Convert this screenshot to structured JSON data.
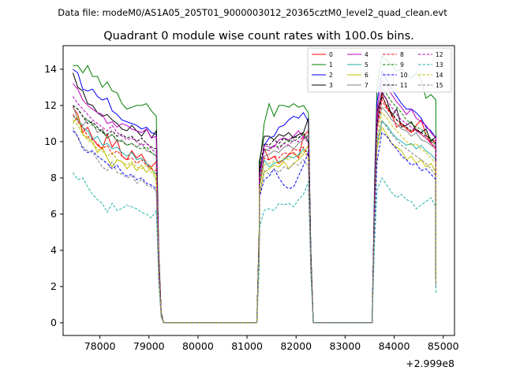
{
  "chart_data": {
    "type": "line",
    "suptitle": "Data file: modeM0/AS1A05_205T01_9000003012_20365cztM0_level2_quad_clean.evt",
    "title": "Quadrant 0 module wise count rates with 100.0s bins.",
    "x_offset_label": "+2.999e8",
    "xlim": [
      77250,
      85230
    ],
    "ylim": [
      -0.7,
      15.3
    ],
    "x_ticks": [
      78000,
      79000,
      80000,
      81000,
      82000,
      83000,
      84000,
      85000
    ],
    "x_tick_labels": [
      "78000",
      "79000",
      "80000",
      "81000",
      "82000",
      "83000",
      "84000",
      "85000"
    ],
    "y_ticks": [
      0,
      2,
      4,
      6,
      8,
      10,
      12,
      14
    ],
    "y_tick_labels": [
      "0",
      "2",
      "4",
      "6",
      "8",
      "10",
      "12",
      "14"
    ],
    "x_segments": [
      {
        "start": 77450,
        "end": 79150
      },
      {
        "start": 79150,
        "end": 81250
      },
      {
        "start": 81250,
        "end": 82250
      },
      {
        "start": 82250,
        "end": 83650
      },
      {
        "start": 83650,
        "end": 84850
      }
    ],
    "transition_points": [
      {
        "x": 79200,
        "y_frac": 0.35
      },
      {
        "x": 79250,
        "y_frac": 0.05
      },
      {
        "x": 81250,
        "y_frac": 0.6
      },
      {
        "x": 82300,
        "y_frac": 0.35
      },
      {
        "x": 83600,
        "y_frac": 0.6
      },
      {
        "x": 84850,
        "y_frac": 0.25
      }
    ],
    "series": [
      {
        "name": "0",
        "color": "#ff0000",
        "dash": "solid",
        "orbit1": [
          11.9,
          11.5,
          10.5,
          10.8,
          10.2,
          9.8,
          9.6,
          10.4,
          9.7,
          10.1,
          9.2,
          9.0,
          9.5,
          9.1,
          9.3,
          8.8,
          8.6,
          8.9
        ],
        "orbit2": [
          8.4,
          9.6,
          9.0,
          9.2,
          8.8,
          9.0,
          9.3,
          9.4,
          9.1,
          10.3,
          10.6
        ],
        "orbit3": [
          11.3,
          12.6,
          11.9,
          11.5,
          10.8,
          11.0,
          10.7,
          10.5,
          10.9,
          11.2,
          10.4,
          9.9,
          10.1
        ]
      },
      {
        "name": "1",
        "color": "#008000",
        "dash": "solid",
        "orbit1": [
          14.2,
          14.2,
          13.8,
          14.2,
          13.6,
          13.6,
          13.0,
          13.3,
          12.8,
          12.7,
          12.1,
          11.8,
          11.9,
          12.0,
          12.0,
          12.1,
          11.7,
          11.4
        ],
        "orbit2": [
          8.5,
          11.0,
          12.1,
          11.4,
          12.0,
          12.0,
          11.9,
          12.1,
          11.9,
          12.0,
          11.6
        ],
        "orbit3": [
          13.1,
          14.7,
          14.5,
          14.2,
          13.9,
          14.0,
          13.8,
          13.5,
          13.8,
          13.4,
          12.4,
          12.6,
          12.3
        ]
      },
      {
        "name": "2",
        "color": "#0000ff",
        "dash": "solid",
        "orbit1": [
          14.0,
          13.8,
          12.9,
          12.8,
          12.9,
          12.5,
          12.3,
          12.4,
          11.7,
          11.5,
          11.2,
          11.1,
          11.0,
          10.9,
          10.7,
          10.8,
          10.5,
          10.4
        ],
        "orbit2": [
          7.8,
          9.8,
          10.2,
          10.3,
          10.8,
          10.9,
          11.2,
          11.4,
          11.3,
          11.6,
          11.1
        ],
        "orbit3": [
          12.2,
          13.9,
          13.4,
          12.9,
          12.5,
          12.1,
          11.8,
          11.8,
          11.6,
          11.3,
          10.8,
          10.6,
          10.2
        ]
      },
      {
        "name": "3",
        "color": "#000000",
        "dash": "solid",
        "orbit1": [
          13.8,
          13.0,
          12.8,
          12.1,
          12.0,
          11.6,
          11.4,
          11.5,
          11.2,
          11.0,
          10.7,
          10.6,
          10.9,
          10.6,
          10.3,
          10.7,
          10.2,
          10.6
        ],
        "orbit2": [
          8.9,
          10.3,
          10.3,
          10.1,
          10.4,
          10.3,
          10.5,
          10.2,
          10.4,
          10.5,
          11.3
        ],
        "orbit3": [
          11.6,
          12.7,
          12.3,
          11.4,
          11.8,
          10.8,
          10.9,
          11.1,
          10.6,
          10.5,
          10.7,
          10.0,
          10.3
        ]
      },
      {
        "name": "4",
        "color": "#bf00bf",
        "dash": "solid",
        "orbit1": [
          13.2,
          12.9,
          12.3,
          12.0,
          11.8,
          11.6,
          11.5,
          11.0,
          11.1,
          10.8,
          11.0,
          10.9,
          10.7,
          10.6,
          10.5,
          10.7,
          10.2,
          10.3
        ],
        "orbit2": [
          8.2,
          9.8,
          9.7,
          9.7,
          10.1,
          10.2,
          10.1,
          10.3,
          10.6,
          10.2,
          10.3
        ],
        "orbit3": [
          11.8,
          13.4,
          13.1,
          12.6,
          12.2,
          11.9,
          11.5,
          11.8,
          11.3,
          11.1,
          10.9,
          10.5,
          10.2
        ]
      },
      {
        "name": "5",
        "color": "#20b2aa",
        "dash": "solid",
        "orbit1": [
          11.4,
          11.2,
          10.8,
          10.6,
          10.1,
          10.3,
          9.8,
          9.9,
          9.6,
          9.7,
          9.4,
          9.2,
          9.4,
          9.0,
          9.1,
          8.8,
          8.5,
          8.2
        ],
        "orbit2": [
          7.5,
          9.0,
          8.6,
          8.8,
          8.9,
          9.0,
          9.2,
          9.1,
          9.3,
          9.6,
          9.4
        ],
        "orbit3": [
          10.0,
          11.1,
          10.9,
          10.5,
          10.2,
          10.0,
          9.8,
          9.9,
          9.6,
          9.8,
          9.5,
          9.3,
          9.0
        ]
      },
      {
        "name": "6",
        "color": "#bfbf00",
        "dash": "solid",
        "orbit1": [
          11.0,
          11.4,
          10.4,
          10.2,
          10.0,
          9.4,
          9.7,
          9.1,
          8.6,
          9.0,
          8.9,
          8.5,
          8.8,
          8.4,
          8.7,
          8.3,
          8.6,
          7.8
        ],
        "orbit2": [
          7.0,
          8.3,
          8.5,
          8.7,
          8.6,
          8.9,
          8.5,
          8.8,
          9.0,
          9.3,
          9.8
        ],
        "orbit3": [
          9.6,
          10.8,
          10.4,
          9.9,
          9.7,
          9.5,
          9.0,
          9.2,
          8.8,
          9.0,
          8.6,
          8.8,
          8.3
        ]
      },
      {
        "name": "7",
        "color": "#808080",
        "dash": "solid",
        "orbit1": [
          12.0,
          11.2,
          10.9,
          11.2,
          11.0,
          10.5,
          10.7,
          10.2,
          10.4,
          10.0,
          10.1,
          9.8,
          9.9,
          9.7,
          9.9,
          9.5,
          9.4,
          9.2
        ],
        "orbit2": [
          7.9,
          9.2,
          9.3,
          9.5,
          9.4,
          9.7,
          9.8,
          9.6,
          9.9,
          10.1,
          10.4
        ],
        "orbit3": [
          10.8,
          11.9,
          11.6,
          11.2,
          11.0,
          10.7,
          10.6,
          10.3,
          10.5,
          10.1,
          10.0,
          9.8,
          9.6
        ]
      },
      {
        "name": "8",
        "color": "#ff0000",
        "dash": "dashed",
        "orbit1": [
          11.5,
          11.1,
          10.8,
          10.3,
          10.1,
          9.9,
          9.6,
          9.8,
          9.3,
          9.5,
          9.2,
          9.0,
          9.1,
          8.8,
          9.0,
          8.7,
          8.5,
          8.4
        ],
        "orbit2": [
          7.6,
          9.1,
          9.0,
          9.2,
          9.1,
          9.4,
          9.3,
          9.6,
          9.5,
          9.7,
          9.2
        ],
        "orbit3": [
          10.6,
          12.3,
          11.8,
          11.5,
          11.2,
          10.9,
          10.8,
          10.5,
          10.7,
          10.4,
          10.2,
          9.9,
          9.6
        ]
      },
      {
        "name": "9",
        "color": "#008000",
        "dash": "dashed",
        "orbit1": [
          12.0,
          11.8,
          11.4,
          11.2,
          10.9,
          10.7,
          10.6,
          10.2,
          10.4,
          10.1,
          10.0,
          9.8,
          9.9,
          9.7,
          9.6,
          9.7,
          9.4,
          9.2
        ],
        "orbit2": [
          8.1,
          9.5,
          9.6,
          9.8,
          9.7,
          9.9,
          10.1,
          10.0,
          10.2,
          10.4,
          10.0
        ],
        "orbit3": [
          10.9,
          13.0,
          12.6,
          12.2,
          11.9,
          11.6,
          11.2,
          11.0,
          10.8,
          10.7,
          10.4,
          10.1,
          9.8
        ]
      },
      {
        "name": "10",
        "color": "#0000ff",
        "dash": "dashed",
        "orbit1": [
          10.6,
          10.3,
          9.6,
          9.4,
          9.5,
          9.2,
          9.0,
          8.8,
          8.5,
          8.7,
          8.3,
          8.1,
          8.2,
          7.9,
          8.0,
          7.7,
          7.6,
          7.4
        ],
        "orbit2": [
          6.9,
          7.9,
          8.1,
          8.5,
          8.0,
          7.6,
          7.4,
          7.5,
          8.1,
          8.7,
          9.4
        ],
        "orbit3": [
          8.9,
          10.5,
          10.3,
          9.9,
          9.6,
          9.2,
          9.0,
          8.7,
          8.8,
          8.4,
          8.5,
          8.2,
          7.9
        ]
      },
      {
        "name": "11",
        "color": "#000000",
        "dash": "dashed",
        "orbit1": [
          12.0,
          11.8,
          11.4,
          11.0,
          11.1,
          10.8,
          10.5,
          10.4,
          10.6,
          10.3,
          10.4,
          10.2,
          10.3,
          10.0,
          10.2,
          9.9,
          9.7,
          9.6
        ],
        "orbit2": [
          8.3,
          9.9,
          9.8,
          10.1,
          9.9,
          10.2,
          10.0,
          10.3,
          10.2,
          10.5,
          10.0
        ],
        "orbit3": [
          11.0,
          12.5,
          12.0,
          11.6,
          11.2,
          11.0,
          10.8,
          10.6,
          10.7,
          10.5,
          10.3,
          10.2,
          9.9
        ]
      },
      {
        "name": "12",
        "color": "#bf00bf",
        "dash": "dashed",
        "orbit1": [
          12.5,
          12.1,
          11.8,
          11.5,
          11.2,
          11.0,
          10.8,
          10.6,
          10.9,
          10.5,
          10.3,
          10.1,
          10.2,
          10.0,
          9.8,
          9.9,
          9.6,
          9.4
        ],
        "orbit2": [
          8.0,
          9.6,
          9.5,
          9.8,
          9.6,
          9.9,
          9.8,
          10.1,
          10.0,
          10.3,
          9.9
        ],
        "orbit3": [
          11.1,
          12.8,
          12.3,
          11.9,
          11.5,
          11.2,
          11.0,
          10.8,
          10.6,
          10.4,
          10.2,
          9.9,
          9.7
        ]
      },
      {
        "name": "13",
        "color": "#20b2aa",
        "dash": "dashed",
        "orbit1": [
          8.3,
          7.9,
          8.0,
          7.5,
          7.1,
          6.8,
          6.6,
          6.1,
          6.6,
          6.2,
          6.3,
          6.5,
          6.4,
          6.3,
          6.1,
          6.0,
          5.8,
          6.2
        ],
        "orbit2": [
          5.2,
          6.2,
          6.3,
          6.2,
          6.6,
          6.5,
          6.6,
          6.4,
          6.8,
          7.1,
          7.8
        ],
        "orbit3": [
          7.3,
          8.0,
          7.6,
          7.2,
          6.9,
          7.1,
          6.8,
          6.7,
          6.3,
          6.5,
          6.7,
          6.9,
          6.4
        ]
      },
      {
        "name": "14",
        "color": "#bfbf00",
        "dash": "dashed",
        "orbit1": [
          11.2,
          10.9,
          10.4,
          10.1,
          9.9,
          9.6,
          9.5,
          9.2,
          9.4,
          9.0,
          8.9,
          8.7,
          8.9,
          8.6,
          8.5,
          8.7,
          8.3,
          8.2
        ],
        "orbit2": [
          7.4,
          8.7,
          8.8,
          8.9,
          8.8,
          9.1,
          9.0,
          9.3,
          9.2,
          9.5,
          9.1
        ],
        "orbit3": [
          10.2,
          11.6,
          11.3,
          10.9,
          10.6,
          10.3,
          10.0,
          9.8,
          9.9,
          9.6,
          9.4,
          9.1,
          8.8
        ]
      },
      {
        "name": "15",
        "color": "#808080",
        "dash": "dashed",
        "orbit1": [
          10.8,
          10.2,
          9.7,
          9.5,
          9.4,
          9.0,
          8.6,
          8.4,
          8.9,
          8.3,
          8.2,
          8.0,
          8.1,
          7.7,
          7.9,
          7.6,
          7.5,
          7.3
        ],
        "orbit2": [
          7.1,
          8.4,
          8.2,
          8.5,
          8.3,
          8.6,
          8.5,
          8.8,
          8.7,
          9.0,
          8.6
        ],
        "orbit3": [
          9.8,
          11.2,
          10.8,
          10.4,
          10.1,
          9.8,
          9.6,
          9.4,
          9.2,
          9.0,
          8.8,
          8.5,
          8.1
        ]
      }
    ],
    "legend": {
      "location": "top-right",
      "columns": 4
    },
    "grid": false
  }
}
